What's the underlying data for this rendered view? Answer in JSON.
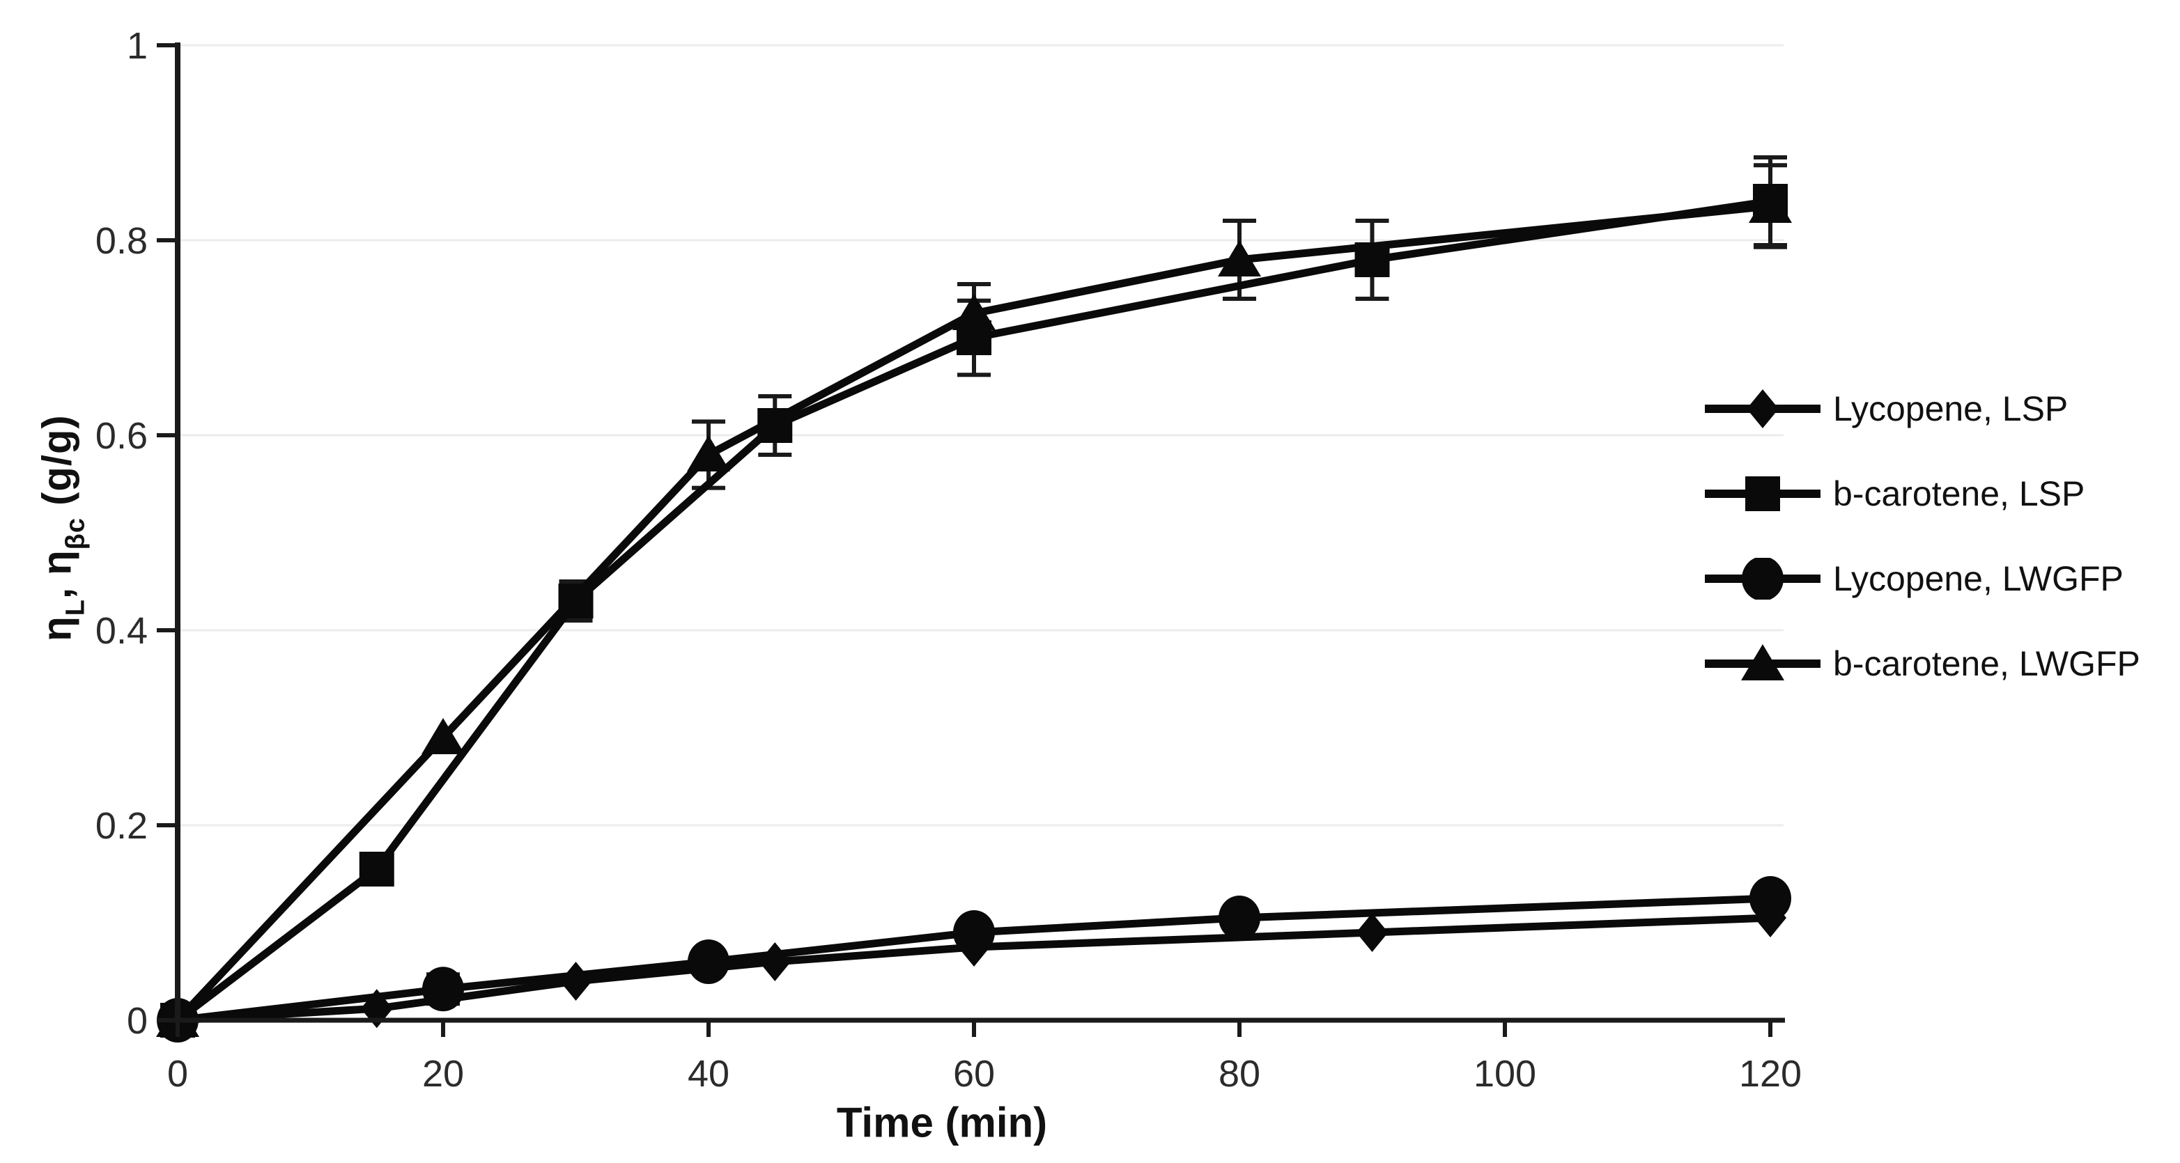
{
  "figure": {
    "background": "#ffffff",
    "series_color": "#0a0a0a",
    "grid_color": "#ececec",
    "axis_color": "#1a1a1a",
    "tick_label_color": "#2b2b2b",
    "legend_text_color": "#111111"
  },
  "chart_data": {
    "type": "line",
    "title": "",
    "xlabel": "Time (min)",
    "ylabel": "ηL, ηβc (g/g)",
    "ylabel_parts": [
      {
        "text": "η",
        "sub": false
      },
      {
        "text": "L",
        "sub": true
      },
      {
        "text": ", η",
        "sub": false
      },
      {
        "text": "βc",
        "sub": true
      },
      {
        "text": " (g/g)",
        "sub": false
      }
    ],
    "xlim": [
      0,
      120
    ],
    "ylim": [
      0,
      1
    ],
    "x_ticks": [
      0,
      20,
      40,
      60,
      80,
      100,
      120
    ],
    "y_ticks": [
      0,
      0.2,
      0.4,
      0.6,
      0.8,
      1
    ],
    "y_tick_labels": [
      "0",
      "0.2",
      "0.4",
      "0.6",
      "0.8",
      "1"
    ],
    "grid": "horizontal",
    "legend_position": "right",
    "series": [
      {
        "name": "Lycopene, LSP",
        "marker": "diamond",
        "x": [
          0,
          15,
          30,
          45,
          60,
          90,
          120
        ],
        "y": [
          0,
          0.012,
          0.04,
          0.06,
          0.075,
          0.09,
          0.105
        ],
        "err": [
          0,
          0,
          0,
          0,
          0,
          0,
          0
        ]
      },
      {
        "name": "b-carotene, LSP",
        "marker": "square",
        "x": [
          0,
          15,
          30,
          45,
          60,
          90,
          120
        ],
        "y": [
          0,
          0.155,
          0.43,
          0.61,
          0.7,
          0.78,
          0.84
        ],
        "err": [
          0,
          0,
          0.02,
          0.03,
          0.038,
          0.04,
          0.045
        ]
      },
      {
        "name": "Lycopene, LWGFP",
        "marker": "circle",
        "x": [
          0,
          20,
          40,
          60,
          80,
          120
        ],
        "y": [
          0,
          0.032,
          0.06,
          0.09,
          0.105,
          0.125
        ],
        "err": [
          0,
          0.015,
          0,
          0,
          0,
          0
        ]
      },
      {
        "name": "b-carotene, LWGFP",
        "marker": "triangle",
        "x": [
          0,
          20,
          40,
          60,
          80,
          120
        ],
        "y": [
          0,
          0.29,
          0.58,
          0.725,
          0.78,
          0.835
        ],
        "err": [
          0,
          0,
          0.034,
          0.03,
          0.04,
          0.042
        ]
      }
    ],
    "legend_order": [
      0,
      1,
      2,
      3
    ],
    "draw_order": [
      3,
      1,
      0,
      2
    ]
  }
}
